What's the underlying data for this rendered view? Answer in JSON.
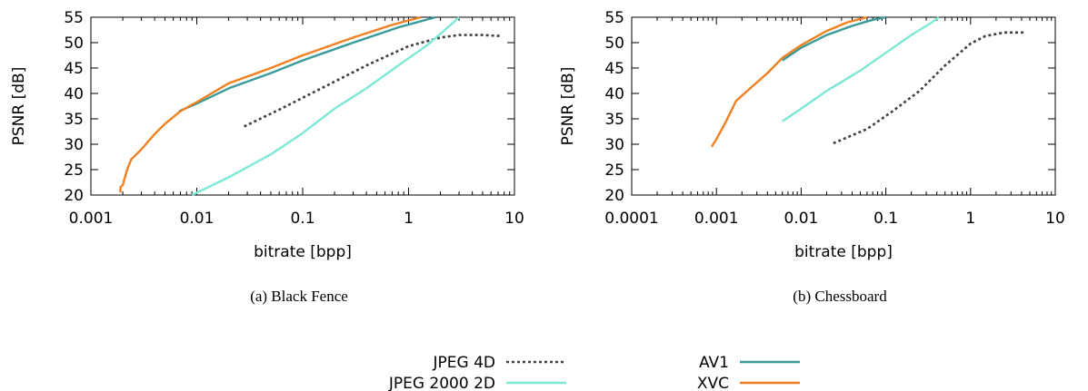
{
  "colors": {
    "jpeg4d": "#404040",
    "jpeg2000": "#7de8d6",
    "av1": "#3a9a9a",
    "xvc": "#f08020"
  },
  "legend": [
    {
      "label": "JPEG 4D",
      "series": "jpeg4d",
      "dashed": true
    },
    {
      "label": "JPEG 2000 2D",
      "series": "jpeg2000",
      "dashed": false
    },
    {
      "label": "AV1",
      "series": "av1",
      "dashed": false
    },
    {
      "label": "XVC",
      "series": "xvc",
      "dashed": false
    }
  ],
  "chart_data": [
    {
      "type": "line",
      "caption": "(a) Black Fence",
      "xlabel": "bitrate [bpp]",
      "ylabel": "PSNR [dB]",
      "xscale": "log",
      "xlim": [
        0.001,
        10
      ],
      "ylim": [
        20,
        55
      ],
      "xticks": [
        0.001,
        0.01,
        0.1,
        1,
        10
      ],
      "xtick_labels": [
        "0.001",
        "0.01",
        "0.1",
        "1",
        "10"
      ],
      "yticks": [
        20,
        25,
        30,
        35,
        40,
        45,
        50,
        55
      ],
      "ytick_labels": [
        "20",
        "25",
        "30",
        "35",
        "40",
        "45",
        "50",
        "55"
      ],
      "grid": false,
      "series": [
        {
          "name": "JPEG 4D",
          "key": "jpeg4d",
          "dashed": true,
          "points": [
            [
              0.028,
              33.5
            ],
            [
              0.06,
              36.8
            ],
            [
              0.15,
              41
            ],
            [
              0.4,
              45.5
            ],
            [
              1,
              49.3
            ],
            [
              2,
              51
            ],
            [
              3,
              51.5
            ],
            [
              5,
              51.5
            ],
            [
              7.5,
              51.3
            ]
          ]
        },
        {
          "name": "JPEG 2000 2D",
          "key": "jpeg2000",
          "dashed": false,
          "points": [
            [
              0.009,
              20
            ],
            [
              0.02,
              23.5
            ],
            [
              0.05,
              28
            ],
            [
              0.1,
              32.2
            ],
            [
              0.2,
              37
            ],
            [
              0.4,
              41
            ],
            [
              0.8,
              45.5
            ],
            [
              1.5,
              49.5
            ],
            [
              2.5,
              53.5
            ],
            [
              3,
              55
            ]
          ]
        },
        {
          "name": "AV1",
          "key": "av1",
          "dashed": false,
          "points": [
            [
              0.0068,
              36.5
            ],
            [
              0.01,
              38
            ],
            [
              0.02,
              41
            ],
            [
              0.05,
              44
            ],
            [
              0.1,
              46.5
            ],
            [
              0.3,
              50
            ],
            [
              0.8,
              53
            ],
            [
              1.8,
              55
            ]
          ]
        },
        {
          "name": "XVC",
          "key": "xvc",
          "dashed": false,
          "points": [
            [
              0.0019,
              20.5
            ],
            [
              0.0019,
              21.5
            ],
            [
              0.002,
              22
            ],
            [
              0.0022,
              25
            ],
            [
              0.0024,
              27
            ],
            [
              0.003,
              29
            ],
            [
              0.004,
              32
            ],
            [
              0.005,
              34
            ],
            [
              0.007,
              36.5
            ],
            [
              0.01,
              38.3
            ],
            [
              0.02,
              42
            ],
            [
              0.05,
              45
            ],
            [
              0.1,
              47.5
            ],
            [
              0.3,
              51
            ],
            [
              0.7,
              53.5
            ],
            [
              1.3,
              55
            ]
          ]
        }
      ]
    },
    {
      "type": "line",
      "caption": "(b) Chessboard",
      "xlabel": "bitrate [bpp]",
      "ylabel": "PSNR [dB]",
      "xscale": "log",
      "xlim": [
        0.0001,
        10
      ],
      "ylim": [
        20,
        55
      ],
      "xticks": [
        0.0001,
        0.001,
        0.01,
        0.1,
        1,
        10
      ],
      "xtick_labels": [
        "0.0001",
        "0.001",
        "0.01",
        "0.1",
        "1",
        "10"
      ],
      "yticks": [
        20,
        25,
        30,
        35,
        40,
        45,
        50,
        55
      ],
      "ytick_labels": [
        "20",
        "25",
        "30",
        "35",
        "40",
        "45",
        "50",
        "55"
      ],
      "grid": false,
      "series": [
        {
          "name": "JPEG 4D",
          "key": "jpeg4d",
          "dashed": true,
          "points": [
            [
              0.024,
              30.2
            ],
            [
              0.06,
              33
            ],
            [
              0.12,
              36.5
            ],
            [
              0.25,
              40.5
            ],
            [
              0.5,
              45.5
            ],
            [
              1,
              49.8
            ],
            [
              1.5,
              51.3
            ],
            [
              2.5,
              52
            ],
            [
              4.5,
              52
            ]
          ]
        },
        {
          "name": "JPEG 2000 2D",
          "key": "jpeg2000",
          "dashed": false,
          "points": [
            [
              0.006,
              34.5
            ],
            [
              0.01,
              37
            ],
            [
              0.02,
              40.5
            ],
            [
              0.05,
              44.5
            ],
            [
              0.1,
              48
            ],
            [
              0.2,
              51.5
            ],
            [
              0.35,
              54
            ],
            [
              0.42,
              55
            ]
          ]
        },
        {
          "name": "AV1",
          "key": "av1",
          "dashed": false,
          "points": [
            [
              0.006,
              46.5
            ],
            [
              0.01,
              49
            ],
            [
              0.02,
              51.5
            ],
            [
              0.04,
              53.3
            ],
            [
              0.07,
              54.5
            ],
            [
              0.1,
              55
            ]
          ]
        },
        {
          "name": "XVC",
          "key": "xvc",
          "dashed": false,
          "points": [
            [
              0.00088,
              29.5
            ],
            [
              0.001,
              31
            ],
            [
              0.0013,
              34.5
            ],
            [
              0.0017,
              38.5
            ],
            [
              0.0025,
              41
            ],
            [
              0.004,
              44
            ],
            [
              0.006,
              47
            ],
            [
              0.01,
              49.5
            ],
            [
              0.02,
              52.3
            ],
            [
              0.035,
              54
            ],
            [
              0.06,
              55
            ]
          ]
        }
      ]
    }
  ]
}
